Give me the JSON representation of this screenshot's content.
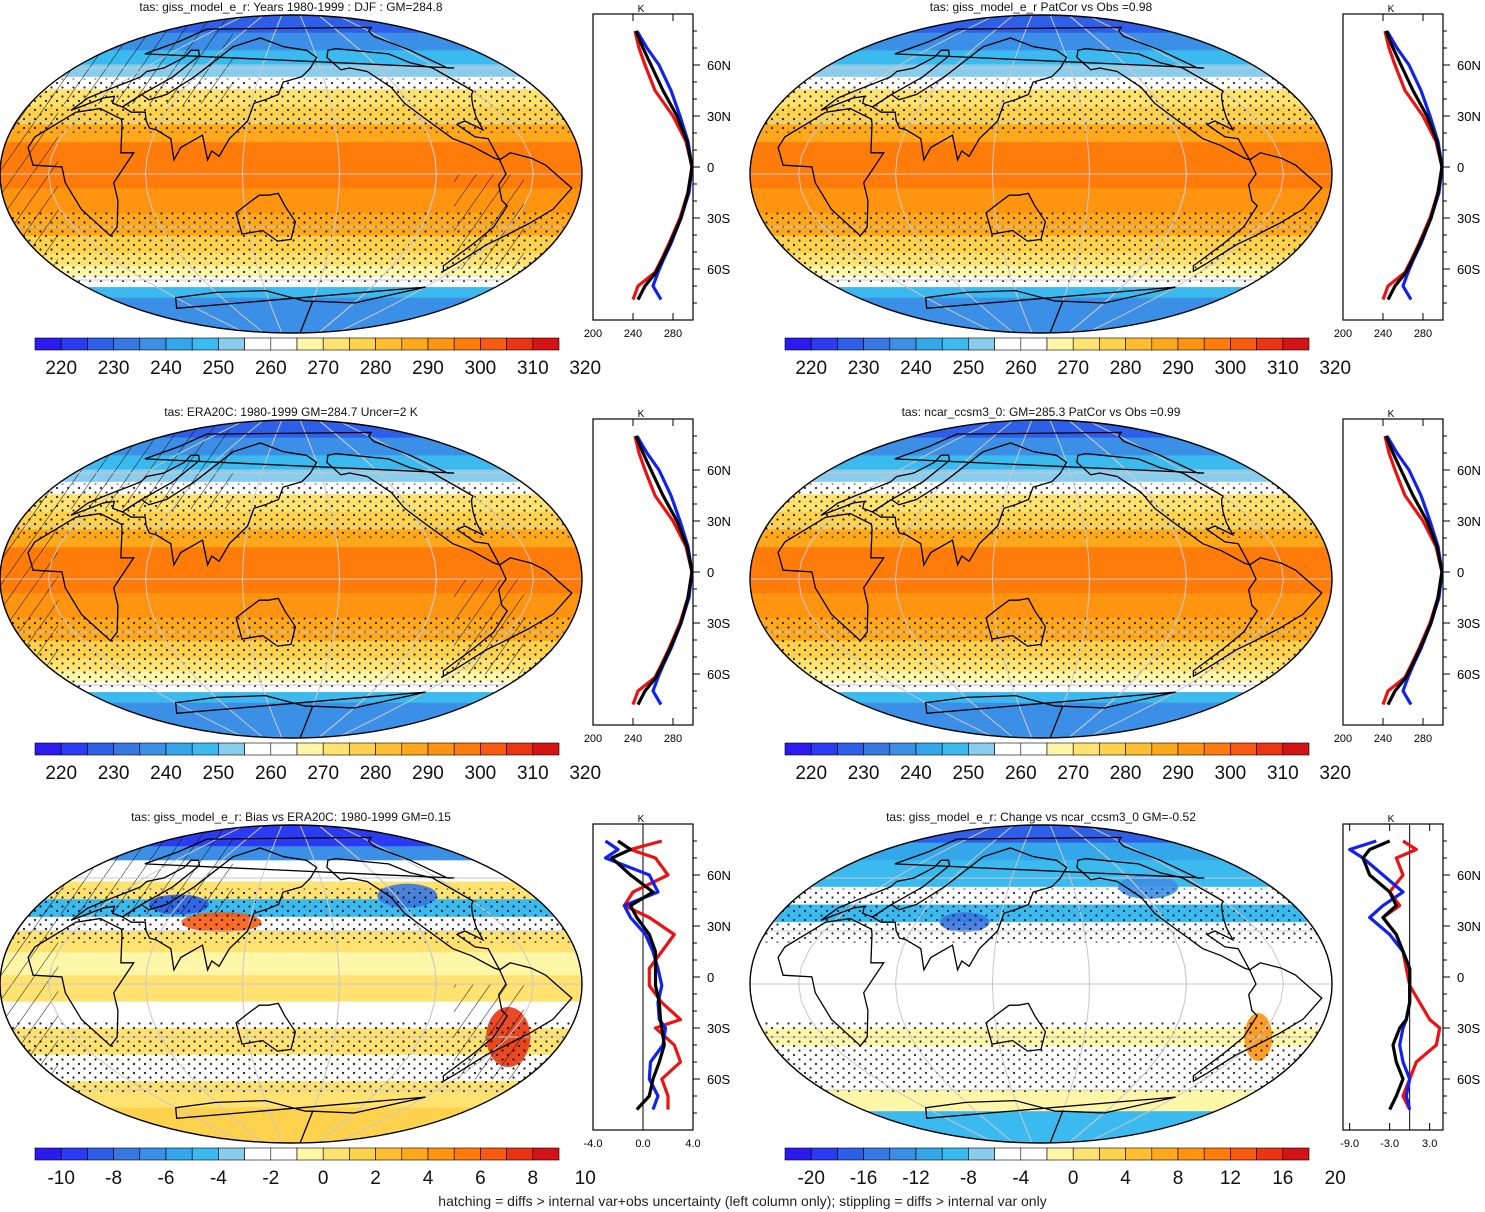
{
  "footer_note": "hatching = diffs > internal var+obs uncertainty (left column only); stippling = diffs > internal var only",
  "lat_labels": [
    "60N",
    "30N",
    "0",
    "30S",
    "60S"
  ],
  "profile_unit": "K",
  "colors": {
    "series_red": "#ee1111",
    "series_blue": "#1122ee",
    "series_black": "#000000",
    "abs_palette": [
      "#2c1bf0",
      "#2a3bf3",
      "#2e5fe8",
      "#3777e2",
      "#3b8fe6",
      "#33a7ea",
      "#3bbaf0",
      "#88ccee",
      "#ffffff",
      "#ffffff",
      "#fff6a8",
      "#ffe270",
      "#ffd24e",
      "#ffbe32",
      "#ffa81c",
      "#ff9410",
      "#ff7b0a",
      "#f85a10",
      "#ea3512",
      "#d41414"
    ],
    "diff_palette": [
      "#2c1bf0",
      "#2a3bf3",
      "#2e5fe8",
      "#3777e2",
      "#3b8fe6",
      "#33a7ea",
      "#3bbaf0",
      "#88ccee",
      "#ffffff",
      "#ffffff",
      "#fff6a8",
      "#ffe270",
      "#ffd24e",
      "#ffbe32",
      "#ffa81c",
      "#ff9410",
      "#ff7b0a",
      "#f85a10",
      "#ea3512",
      "#d41414"
    ]
  },
  "chart_data": [
    {
      "type": "heatmap",
      "title": "tas: giss_model_e_r: Years 1980-1999 : DJF : GM=284.8",
      "colorbar_labels": [
        "220",
        "230",
        "240",
        "250",
        "260",
        "270",
        "280",
        "290",
        "300",
        "310",
        "320"
      ],
      "profile": {
        "xlim": [
          200,
          300
        ],
        "xticklabels": [
          "200",
          "240",
          "280"
        ],
        "series": [
          {
            "color": "red",
            "lat": [
              80,
              70,
              60,
              45,
              30,
              15,
              0,
              -15,
              -30,
              -45,
              -55,
              -62,
              -70,
              -78
            ],
            "values": [
              242,
              246,
              252,
              262,
              280,
              293,
              299,
              295,
              287,
              276,
              268,
              262,
              245,
              240
            ]
          },
          {
            "color": "blue",
            "lat": [
              80,
              70,
              60,
              45,
              30,
              15,
              0,
              -15,
              -30,
              -45,
              -55,
              -62,
              -70,
              -78
            ],
            "values": [
              244,
              254,
              266,
              278,
              287,
              295,
              299,
              296,
              288,
              278,
              270,
              265,
              260,
              268
            ]
          },
          {
            "color": "black",
            "lat": [
              80,
              70,
              60,
              45,
              30,
              15,
              0,
              -15,
              -30,
              -45,
              -55,
              -62,
              -70,
              -78
            ],
            "values": [
              243,
              250,
              258,
              270,
              284,
              294,
              299,
              295,
              288,
              277,
              269,
              263,
              252,
              245
            ]
          }
        ]
      }
    },
    {
      "type": "heatmap",
      "title": "tas: giss_model_e_r PatCor vs Obs =0.98",
      "colorbar_labels": [
        "220",
        "230",
        "240",
        "250",
        "260",
        "270",
        "280",
        "290",
        "300",
        "310",
        "320"
      ],
      "profile": {
        "xlim": [
          200,
          300
        ],
        "xticklabels": [
          "200",
          "240",
          "280"
        ],
        "series": [
          {
            "color": "red",
            "lat": [
              80,
              70,
              60,
              45,
              30,
              15,
              0,
              -15,
              -30,
              -45,
              -55,
              -62,
              -70,
              -78
            ],
            "values": [
              242,
              246,
              252,
              262,
              280,
              293,
              299,
              295,
              287,
              276,
              268,
              262,
              245,
              240
            ]
          },
          {
            "color": "blue",
            "lat": [
              80,
              70,
              60,
              45,
              30,
              15,
              0,
              -15,
              -30,
              -45,
              -55,
              -62,
              -70,
              -78
            ],
            "values": [
              244,
              254,
              266,
              278,
              287,
              295,
              299,
              296,
              288,
              278,
              270,
              265,
              260,
              268
            ]
          },
          {
            "color": "black",
            "lat": [
              80,
              70,
              60,
              45,
              30,
              15,
              0,
              -15,
              -30,
              -45,
              -55,
              -62,
              -70,
              -78
            ],
            "values": [
              243,
              250,
              258,
              270,
              284,
              294,
              299,
              295,
              288,
              277,
              269,
              263,
              252,
              245
            ]
          }
        ]
      }
    },
    {
      "type": "heatmap",
      "title": "tas: ERA20C: 1980-1999 GM=284.7 Uncer=2 K",
      "colorbar_labels": [
        "220",
        "230",
        "240",
        "250",
        "260",
        "270",
        "280",
        "290",
        "300",
        "310",
        "320"
      ],
      "profile": {
        "xlim": [
          200,
          300
        ],
        "xticklabels": [
          "200",
          "240",
          "280"
        ],
        "series": [
          {
            "color": "red",
            "lat": [
              80,
              70,
              60,
              45,
              30,
              15,
              0,
              -15,
              -30,
              -45,
              -55,
              -62,
              -70,
              -78
            ],
            "values": [
              242,
              246,
              252,
              262,
              280,
              293,
              299,
              295,
              287,
              276,
              268,
              262,
              245,
              240
            ]
          },
          {
            "color": "blue",
            "lat": [
              80,
              70,
              60,
              45,
              30,
              15,
              0,
              -15,
              -30,
              -45,
              -55,
              -62,
              -70,
              -78
            ],
            "values": [
              244,
              254,
              266,
              278,
              287,
              295,
              299,
              296,
              288,
              278,
              270,
              265,
              260,
              268
            ]
          },
          {
            "color": "black",
            "lat": [
              80,
              70,
              60,
              45,
              30,
              15,
              0,
              -15,
              -30,
              -45,
              -55,
              -62,
              -70,
              -78
            ],
            "values": [
              243,
              250,
              258,
              270,
              284,
              294,
              299,
              295,
              288,
              277,
              269,
              263,
              252,
              245
            ]
          }
        ]
      }
    },
    {
      "type": "heatmap",
      "title": "tas: ncar_ccsm3_0: GM=285.3 PatCor vs Obs =0.99",
      "colorbar_labels": [
        "220",
        "230",
        "240",
        "250",
        "260",
        "270",
        "280",
        "290",
        "300",
        "310",
        "320"
      ],
      "profile": {
        "xlim": [
          200,
          300
        ],
        "xticklabels": [
          "200",
          "240",
          "280"
        ],
        "series": [
          {
            "color": "red",
            "lat": [
              80,
              70,
              60,
              45,
              30,
              15,
              0,
              -15,
              -30,
              -45,
              -55,
              -62,
              -70,
              -78
            ],
            "values": [
              242,
              246,
              252,
              262,
              280,
              293,
              299,
              295,
              287,
              276,
              268,
              262,
              245,
              240
            ]
          },
          {
            "color": "blue",
            "lat": [
              80,
              70,
              60,
              45,
              30,
              15,
              0,
              -15,
              -30,
              -45,
              -55,
              -62,
              -70,
              -78
            ],
            "values": [
              244,
              254,
              266,
              278,
              287,
              295,
              299,
              296,
              288,
              278,
              270,
              265,
              260,
              268
            ]
          },
          {
            "color": "black",
            "lat": [
              80,
              70,
              60,
              45,
              30,
              15,
              0,
              -15,
              -30,
              -45,
              -55,
              -62,
              -70,
              -78
            ],
            "values": [
              243,
              250,
              258,
              270,
              284,
              294,
              299,
              295,
              288,
              277,
              269,
              263,
              252,
              245
            ]
          }
        ]
      }
    },
    {
      "type": "heatmap",
      "title": "tas: giss_model_e_r: Bias vs ERA20C: 1980-1999 GM=0.15",
      "colorbar_labels": [
        "-10",
        "-8",
        "-6",
        "-4",
        "-2",
        "0",
        "2",
        "4",
        "6",
        "8",
        "10"
      ],
      "profile": {
        "xlim": [
          -4,
          4
        ],
        "xticklabels": [
          "-4.0",
          "0.0",
          "4.0"
        ],
        "series": [
          {
            "color": "red",
            "lat": [
              80,
              75,
              70,
              60,
              50,
              42,
              35,
              25,
              15,
              5,
              -5,
              -15,
              -25,
              -30,
              -40,
              -50,
              -60,
              -70,
              -78
            ],
            "values": [
              1.5,
              -1,
              1,
              2,
              -0.8,
              -1.5,
              0.5,
              2.5,
              1.5,
              0.5,
              0.5,
              1.5,
              3,
              1,
              2.5,
              3,
              1.5,
              2,
              2
            ]
          },
          {
            "color": "blue",
            "lat": [
              80,
              75,
              70,
              60,
              50,
              42,
              35,
              25,
              15,
              5,
              -5,
              -15,
              -25,
              -30,
              -40,
              -50,
              -60,
              -70,
              -78
            ],
            "values": [
              -3,
              -2,
              -3,
              0.5,
              1.2,
              -1.5,
              -1,
              0.2,
              0.8,
              1.2,
              1.5,
              1.2,
              1.3,
              1.8,
              1.6,
              0.6,
              0.5,
              1.2,
              0.8
            ]
          },
          {
            "color": "black",
            "lat": [
              80,
              75,
              70,
              60,
              50,
              42,
              35,
              25,
              15,
              5,
              -5,
              -15,
              -25,
              -30,
              -40,
              -50,
              -60,
              -70,
              -78
            ],
            "values": [
              -2,
              -1,
              -2.5,
              -1,
              0.8,
              -1,
              -0.5,
              0.5,
              1,
              1,
              1,
              1.3,
              1.4,
              1.5,
              1.7,
              1.3,
              0.8,
              0.5,
              -0.5
            ]
          }
        ]
      }
    },
    {
      "type": "heatmap",
      "title": "tas: giss_model_e_r: Change vs ncar_ccsm3_0 GM=-0.52",
      "colorbar_labels": [
        "-20",
        "-16",
        "-12",
        "-8",
        "-4",
        "0",
        "4",
        "8",
        "12",
        "16",
        "20"
      ],
      "profile": {
        "xlim": [
          -10,
          5
        ],
        "xticklabels": [
          "-9.0",
          "-3.0",
          "3.0"
        ],
        "series": [
          {
            "color": "red",
            "lat": [
              80,
              75,
              70,
              60,
              50,
              42,
              35,
              25,
              15,
              5,
              -5,
              -15,
              -25,
              -30,
              -40,
              -50,
              -60,
              -70,
              -78
            ],
            "values": [
              -1,
              1,
              -2,
              -1,
              -3,
              -1.5,
              -4,
              -2,
              -1,
              -0.5,
              0,
              1.5,
              3,
              4.5,
              4,
              1,
              0,
              -1,
              0
            ]
          },
          {
            "color": "blue",
            "lat": [
              80,
              75,
              70,
              60,
              50,
              42,
              35,
              25,
              15,
              5,
              -5,
              -15,
              -25,
              -30,
              -40,
              -50,
              -60,
              -70,
              -78
            ],
            "values": [
              -5,
              -9,
              -7,
              -4,
              -1,
              -4,
              -6,
              -3,
              -1,
              0,
              0,
              0,
              -0.5,
              -1,
              -1.5,
              -1,
              0,
              -0.5,
              0
            ]
          },
          {
            "color": "black",
            "lat": [
              80,
              75,
              70,
              60,
              50,
              42,
              35,
              25,
              15,
              5,
              -5,
              -15,
              -25,
              -30,
              -40,
              -50,
              -60,
              -70,
              -78
            ],
            "values": [
              -3,
              -6,
              -7,
              -6,
              -3,
              -2,
              -4,
              -2,
              -1,
              0,
              0,
              0,
              -0.5,
              -1.5,
              -2.5,
              -2,
              -1,
              -2,
              -3
            ]
          }
        ]
      }
    }
  ]
}
